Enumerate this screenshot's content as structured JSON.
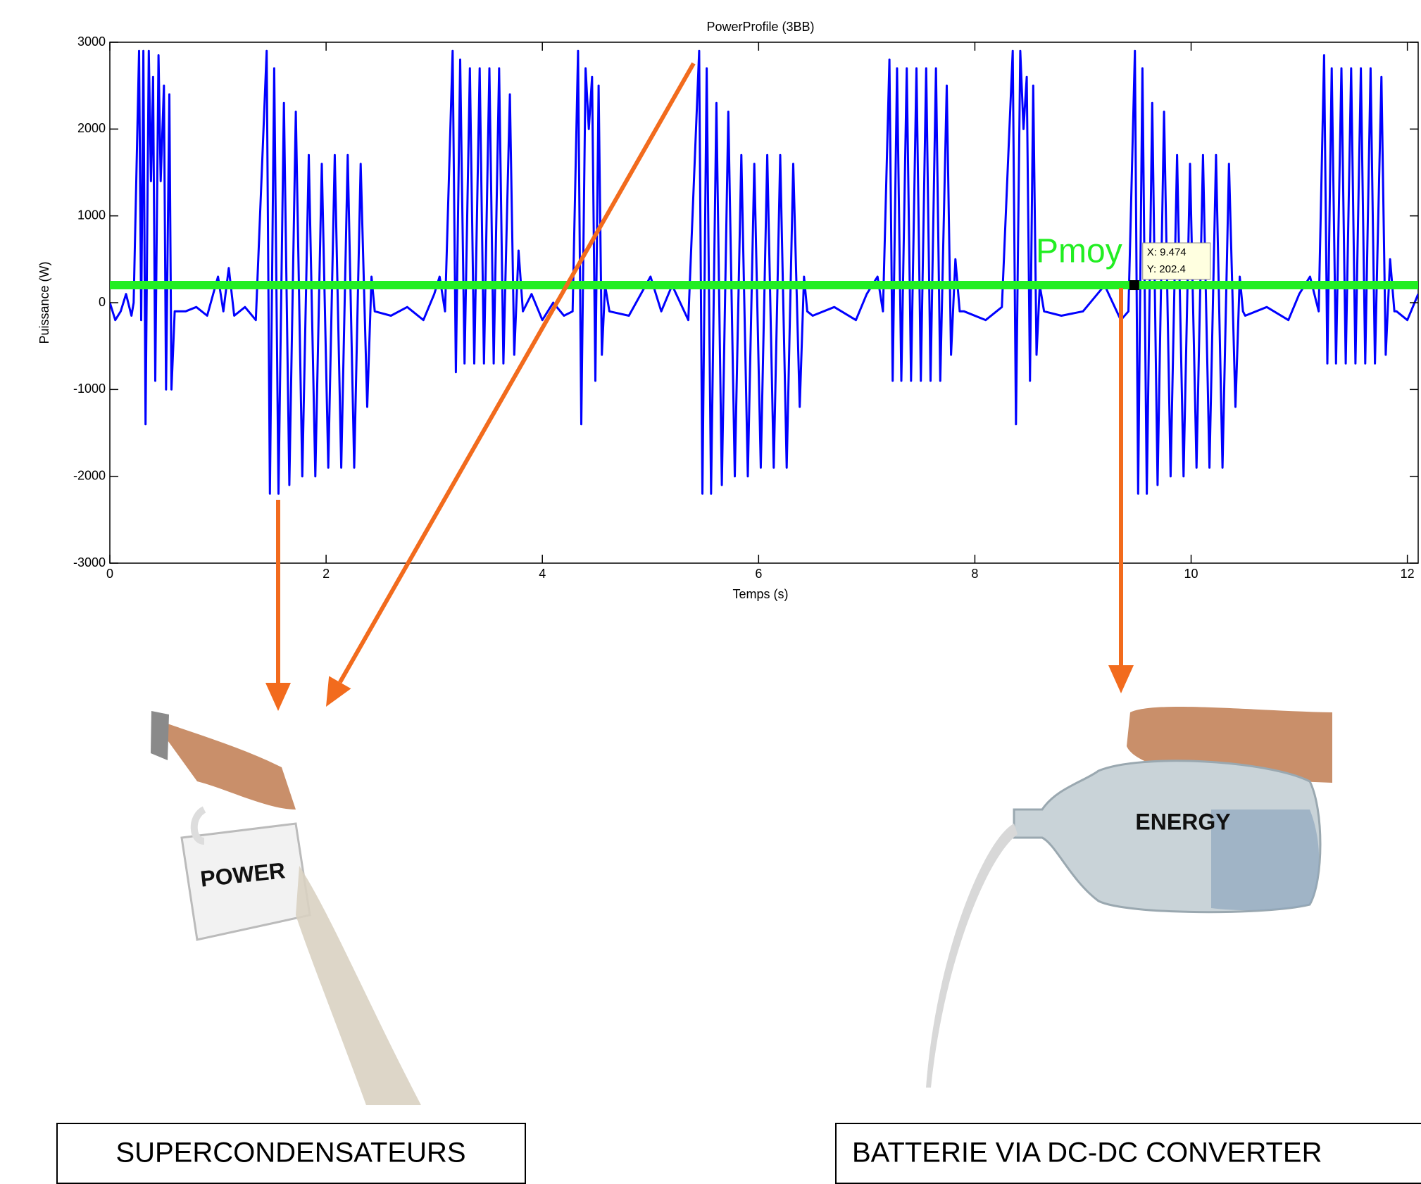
{
  "chart_data": {
    "type": "line",
    "title": "PowerProfile (3BB)",
    "x_label": "Temps (s)",
    "y_label": "Puissance (W)",
    "xlim": [
      0,
      12.1
    ],
    "ylim": [
      -3000,
      3000
    ],
    "xticks": [
      0,
      2,
      4,
      6,
      8,
      10,
      12
    ],
    "yticks": [
      -3000,
      -2000,
      -1000,
      0,
      1000,
      2000,
      3000
    ],
    "series": [
      {
        "color": "#0000ff",
        "x": [
          0,
          0.05,
          0.1,
          0.15,
          0.2,
          0.22,
          0.27,
          0.29,
          0.31,
          0.33,
          0.36,
          0.38,
          0.4,
          0.42,
          0.45,
          0.47,
          0.5,
          0.52,
          0.55,
          0.57,
          0.6,
          0.7,
          0.8,
          0.9,
          1.0,
          1.05,
          1.1,
          1.15,
          1.25,
          1.35,
          1.45,
          1.48,
          1.52,
          1.56,
          1.61,
          1.66,
          1.72,
          1.78,
          1.84,
          1.9,
          1.96,
          2.02,
          2.08,
          2.14,
          2.2,
          2.26,
          2.32,
          2.38,
          2.42,
          2.45,
          2.6,
          2.75,
          2.9,
          3.0,
          3.05,
          3.1,
          3.17,
          3.2,
          3.24,
          3.28,
          3.33,
          3.37,
          3.42,
          3.46,
          3.51,
          3.55,
          3.6,
          3.64,
          3.7,
          3.74,
          3.78,
          3.82,
          3.9,
          4.0,
          4.1,
          4.2,
          4.28,
          4.33,
          4.36,
          4.4,
          4.43,
          4.46,
          4.49,
          4.52,
          4.55,
          4.58,
          4.62,
          4.8,
          5.0,
          5.1,
          5.2,
          5.35,
          5.45,
          5.48,
          5.52,
          5.56,
          5.61,
          5.66,
          5.72,
          5.78,
          5.84,
          5.9,
          5.96,
          6.02,
          6.08,
          6.14,
          6.2,
          6.26,
          6.32,
          6.38,
          6.42,
          6.45,
          6.5,
          6.7,
          6.9,
          7.0,
          7.1,
          7.15,
          7.21,
          7.24,
          7.28,
          7.32,
          7.37,
          7.41,
          7.46,
          7.5,
          7.55,
          7.59,
          7.64,
          7.68,
          7.74,
          7.78,
          7.82,
          7.86,
          7.9,
          8.1,
          8.25,
          8.35,
          8.38,
          8.42,
          8.45,
          8.48,
          8.51,
          8.54,
          8.57,
          8.6,
          8.64,
          8.8,
          9.0,
          9.2,
          9.35,
          9.42,
          9.48,
          9.51,
          9.55,
          9.59,
          9.64,
          9.69,
          9.75,
          9.81,
          9.87,
          9.93,
          9.99,
          10.05,
          10.11,
          10.17,
          10.23,
          10.29,
          10.35,
          10.41,
          10.45,
          10.48,
          10.5,
          10.7,
          10.9,
          11.0,
          11.1,
          11.18,
          11.23,
          11.26,
          11.3,
          11.34,
          11.39,
          11.43,
          11.48,
          11.52,
          11.57,
          11.61,
          11.66,
          11.7,
          11.76,
          11.8,
          11.84,
          11.88,
          11.9,
          12.0,
          12.1
        ],
        "values": [
          0,
          -200,
          -100,
          100,
          -150,
          0,
          2900,
          -200,
          2900,
          -1400,
          2900,
          1400,
          2600,
          -900,
          2850,
          1400,
          2500,
          -1000,
          2400,
          -1000,
          -100,
          -100,
          -50,
          -150,
          300,
          -100,
          400,
          -150,
          -50,
          -200,
          2900,
          -2200,
          2700,
          -2200,
          2300,
          -2100,
          2200,
          -2000,
          1700,
          -2000,
          1600,
          -1900,
          1700,
          -1900,
          1700,
          -1900,
          1600,
          -1200,
          300,
          -100,
          -150,
          -50,
          -200,
          100,
          300,
          -100,
          2900,
          -800,
          2800,
          -700,
          2700,
          -700,
          2700,
          -700,
          2700,
          -700,
          2700,
          -700,
          2400,
          -600,
          600,
          -100,
          100,
          -200,
          0,
          -150,
          -100,
          2900,
          -1400,
          2700,
          2000,
          2600,
          -900,
          2500,
          -600,
          200,
          -100,
          -150,
          300,
          -100,
          200,
          -200,
          2900,
          -2200,
          2700,
          -2200,
          2300,
          -2100,
          2200,
          -2000,
          1700,
          -2000,
          1600,
          -1900,
          1700,
          -1900,
          1700,
          -1900,
          1600,
          -1200,
          300,
          -100,
          -150,
          -50,
          -200,
          100,
          300,
          -100,
          2800,
          -900,
          2700,
          -900,
          2700,
          -900,
          2700,
          -900,
          2700,
          -900,
          2700,
          -900,
          2500,
          -600,
          500,
          -100,
          -100,
          -200,
          -50,
          2900,
          -1400,
          2900,
          2000,
          2600,
          -900,
          2500,
          -600,
          200,
          -100,
          -150,
          -100,
          200,
          -200,
          -100,
          2900,
          -2200,
          2700,
          -2200,
          2300,
          -2100,
          2200,
          -2000,
          1700,
          -2000,
          1600,
          -1900,
          1700,
          -1900,
          1700,
          -1900,
          1600,
          -1200,
          300,
          -100,
          -150,
          -50,
          -200,
          100,
          300,
          -100,
          2850,
          -700,
          2700,
          -700,
          2700,
          -700,
          2700,
          -700,
          2700,
          -700,
          2700,
          -700,
          2600,
          -600,
          500,
          -100,
          -100,
          -200,
          100
        ]
      },
      {
        "name": "Pmoy",
        "color": "#22ee22",
        "x": [
          0,
          12.1
        ],
        "values": [
          202.4,
          202.4
        ]
      }
    ],
    "datatip": {
      "x": 9.474,
      "y": 202.4,
      "x_label": "X: 9.474",
      "y_label": "Y: 202.4"
    },
    "arrow_color": "#f26b1d"
  },
  "images": {
    "left_label": "POWER",
    "right_label": "ENERGY"
  },
  "boxes": {
    "left": "SUPERCONDENSATEURS",
    "right": "BATTERIE VIA DC-DC CONVERTER"
  }
}
